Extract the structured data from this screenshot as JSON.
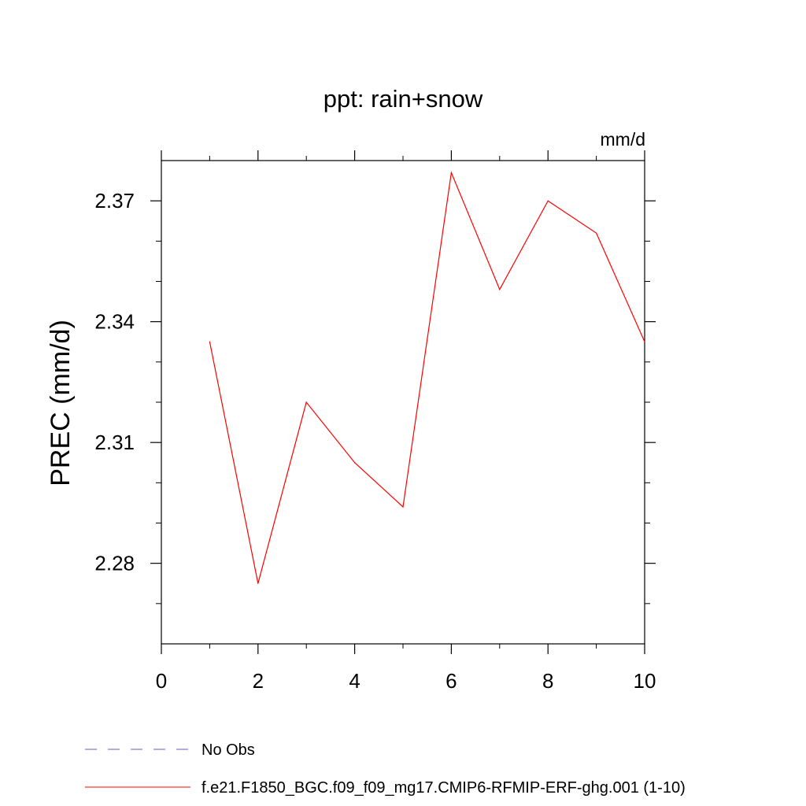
{
  "chart_data": {
    "type": "line",
    "title": "ppt: rain+snow",
    "units": "mm/d",
    "xlabel": "",
    "ylabel": "PREC  (mm/d)",
    "xlim": [
      0,
      10
    ],
    "ylim": [
      2.26,
      2.38
    ],
    "x_ticks": [
      "0",
      "2",
      "4",
      "6",
      "8",
      "10"
    ],
    "y_ticks": [
      "2.28",
      "2.31",
      "2.34",
      "2.37"
    ],
    "grid": false,
    "legend_position": "bottom-left",
    "series": [
      {
        "name": "f.e21.F1850_BGC.f09_f09_mg17.CMIP6-RFMIP-ERF-ghg.001 (1-10)",
        "color": "#ff0000",
        "style": "solid",
        "x": [
          1,
          2,
          3,
          4,
          5,
          6,
          7,
          8,
          9,
          10
        ],
        "y": [
          2.335,
          2.275,
          2.32,
          2.305,
          2.294,
          2.377,
          2.348,
          2.37,
          2.362,
          2.335
        ]
      }
    ],
    "legend": [
      {
        "label": "No Obs",
        "color": "#6a5acd",
        "style": "dashed"
      },
      {
        "label": "f.e21.F1850_BGC.f09_f09_mg17.CMIP6-RFMIP-ERF-ghg.001 (1-10)",
        "color": "#ff0000",
        "style": "solid"
      }
    ]
  }
}
